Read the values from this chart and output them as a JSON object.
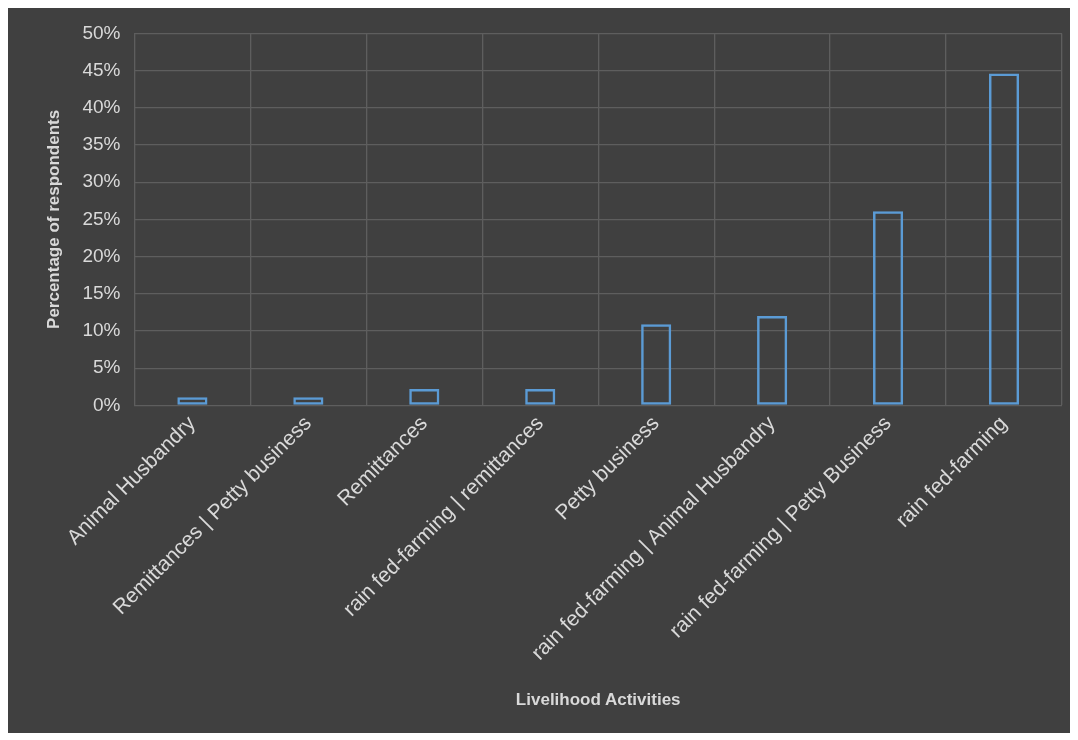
{
  "chart_data": {
    "type": "bar",
    "xlabel": "Livelihood Activities",
    "ylabel": "Percentage of respondents",
    "categories": [
      "Animal Husbandry",
      "Remittances | Petty business",
      "Remittances",
      "rain fed-farming | remittances",
      "Petty business",
      "rain fed-farming | Animal Husbandry",
      "rain fed-farming | Petty Business",
      "rain fed-farming"
    ],
    "values": [
      1.1,
      1.1,
      2.2,
      2.2,
      10.9,
      12.0,
      26.1,
      44.6
    ],
    "color": "#5b9bd5",
    "ylim": [
      0,
      50
    ],
    "yticks": [
      {
        "value": 0,
        "label": "0%"
      },
      {
        "value": 5,
        "label": "5%"
      },
      {
        "value": 10,
        "label": "10%"
      },
      {
        "value": 15,
        "label": "15%"
      },
      {
        "value": 20,
        "label": "20%"
      },
      {
        "value": 25,
        "label": "25%"
      },
      {
        "value": 30,
        "label": "30%"
      },
      {
        "value": 35,
        "label": "35%"
      },
      {
        "value": 40,
        "label": "40%"
      },
      {
        "value": 45,
        "label": "45%"
      },
      {
        "value": 50,
        "label": "50%"
      }
    ],
    "grid": true,
    "legend": false
  }
}
